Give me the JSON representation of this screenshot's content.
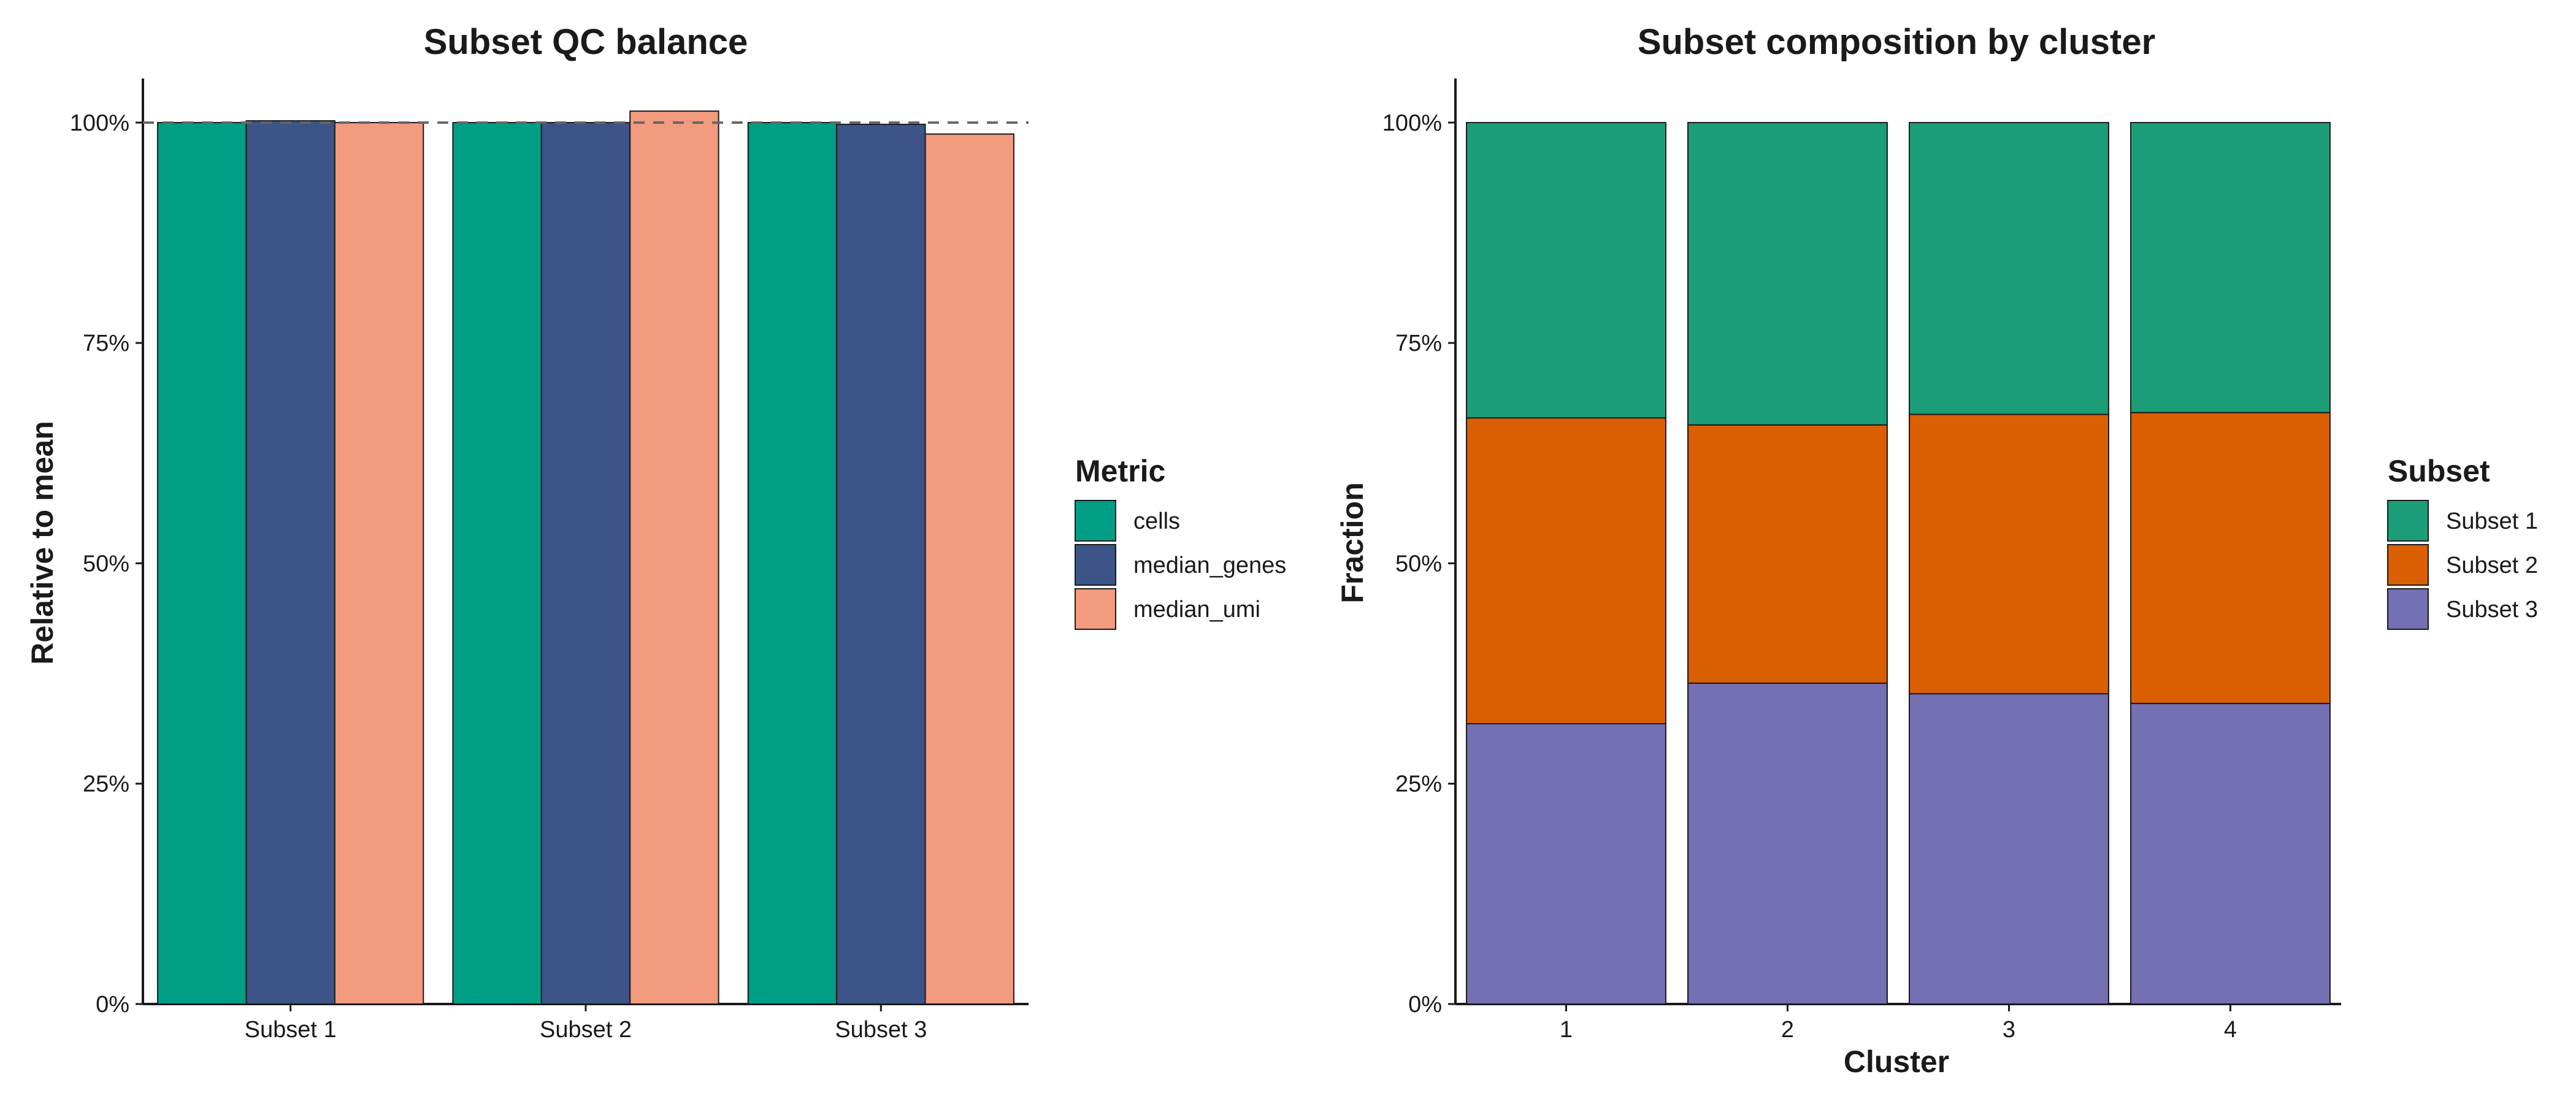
{
  "chart_data": [
    {
      "type": "bar",
      "title": "Subset QC balance",
      "xlabel": "",
      "ylabel": "Relative to mean",
      "categories": [
        "Subset 1",
        "Subset 2",
        "Subset 3"
      ],
      "series": [
        {
          "name": "cells",
          "color": "#009E84",
          "values": [
            1.0,
            1.0,
            1.0
          ]
        },
        {
          "name": "median_genes",
          "color": "#3C5488",
          "values": [
            1.002,
            1.0,
            0.998
          ]
        },
        {
          "name": "median_umi",
          "color": "#F39B7F",
          "values": [
            1.0,
            1.013,
            0.987
          ]
        }
      ],
      "ylim": [
        0,
        1.05
      ],
      "yticks": [
        0,
        0.25,
        0.5,
        0.75,
        1.0
      ],
      "ytick_labels": [
        "0%",
        "25%",
        "50%",
        "75%",
        "100%"
      ],
      "reference_line": {
        "y": 1.0,
        "style": "dashed",
        "color": "#666666"
      },
      "legend": {
        "title": "Metric",
        "placement": "right"
      },
      "grid": false
    },
    {
      "type": "bar",
      "stacked": true,
      "title": "Subset composition by cluster",
      "xlabel": "Cluster",
      "ylabel": "Fraction",
      "categories": [
        "1",
        "2",
        "3",
        "4"
      ],
      "series": [
        {
          "name": "Subset 1",
          "color": "#1B9E77",
          "values": [
            0.335,
            0.343,
            0.331,
            0.329
          ]
        },
        {
          "name": "Subset 2",
          "color": "#D95F02",
          "values": [
            0.347,
            0.293,
            0.317,
            0.33
          ]
        },
        {
          "name": "Subset 3",
          "color": "#7570B3",
          "values": [
            0.318,
            0.364,
            0.352,
            0.341
          ]
        }
      ],
      "ylim": [
        0,
        1.05
      ],
      "yticks": [
        0,
        0.25,
        0.5,
        0.75,
        1.0
      ],
      "ytick_labels": [
        "0%",
        "25%",
        "50%",
        "75%",
        "100%"
      ],
      "legend": {
        "title": "Subset",
        "placement": "right"
      },
      "grid": false
    }
  ]
}
